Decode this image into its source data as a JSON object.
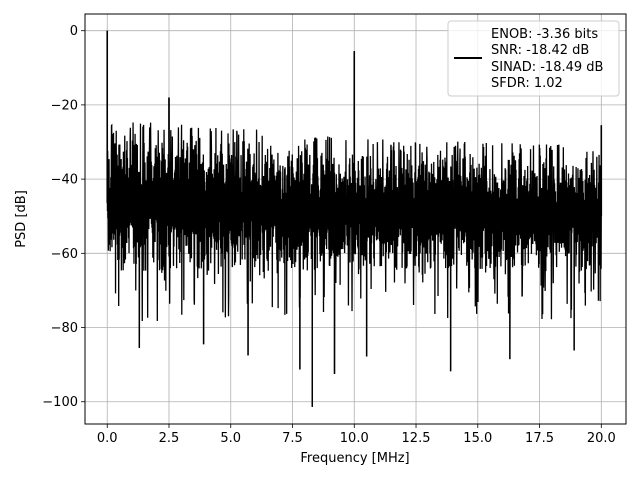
{
  "chart_data": {
    "type": "line",
    "xlabel": "Frequency [MHz]",
    "ylabel": "PSD [dB]",
    "xlim": [
      -0.9,
      21.0
    ],
    "ylim": [
      -106,
      4.5
    ],
    "x_ticks": [
      0.0,
      2.5,
      5.0,
      7.5,
      10.0,
      12.5,
      15.0,
      17.5,
      20.0
    ],
    "x_tick_labels": [
      "0.0",
      "2.5",
      "5.0",
      "7.5",
      "10.0",
      "12.5",
      "15.0",
      "17.5",
      "20.0"
    ],
    "y_ticks": [
      0,
      -20,
      -40,
      -60,
      -80,
      -100
    ],
    "y_tick_labels": [
      "0",
      "−20",
      "−40",
      "−60",
      "−80",
      "−100"
    ],
    "grid": true,
    "legend_position": "top-right",
    "series": [
      {
        "color": "#000000",
        "x_range": [
          0.0,
          20.0
        ],
        "noise_floor_top": [
          [
            0.0,
            -26
          ],
          [
            5.0,
            -28
          ],
          [
            10.0,
            -31
          ],
          [
            15.0,
            -32
          ],
          [
            20.0,
            -33
          ]
        ],
        "noise_floor_bottom": [
          [
            0.0,
            -67
          ],
          [
            5.0,
            -66
          ],
          [
            10.0,
            -66
          ],
          [
            15.0,
            -66
          ],
          [
            20.0,
            -67
          ]
        ],
        "peaks": [
          {
            "x": 0.0,
            "y": 0
          },
          {
            "x": 2.5,
            "y": -18
          },
          {
            "x": 10.0,
            "y": -5.5
          },
          {
            "x": 20.0,
            "y": -25.5
          }
        ],
        "dips": [
          {
            "x": 1.3,
            "y": -85.5
          },
          {
            "x": 3.9,
            "y": -84.5
          },
          {
            "x": 5.7,
            "y": -87.5
          },
          {
            "x": 7.8,
            "y": -91.3
          },
          {
            "x": 8.3,
            "y": -101.4
          },
          {
            "x": 9.2,
            "y": -92.5
          },
          {
            "x": 10.5,
            "y": -87.8
          },
          {
            "x": 13.9,
            "y": -91.8
          },
          {
            "x": 16.3,
            "y": -88.5
          },
          {
            "x": 18.9,
            "y": -86.2
          }
        ]
      }
    ],
    "legend_entries": [
      "ENOB: -3.36 bits",
      "SNR: -18.42 dB",
      "SINAD: -18.49 dB",
      "SFDR: 1.02"
    ]
  }
}
